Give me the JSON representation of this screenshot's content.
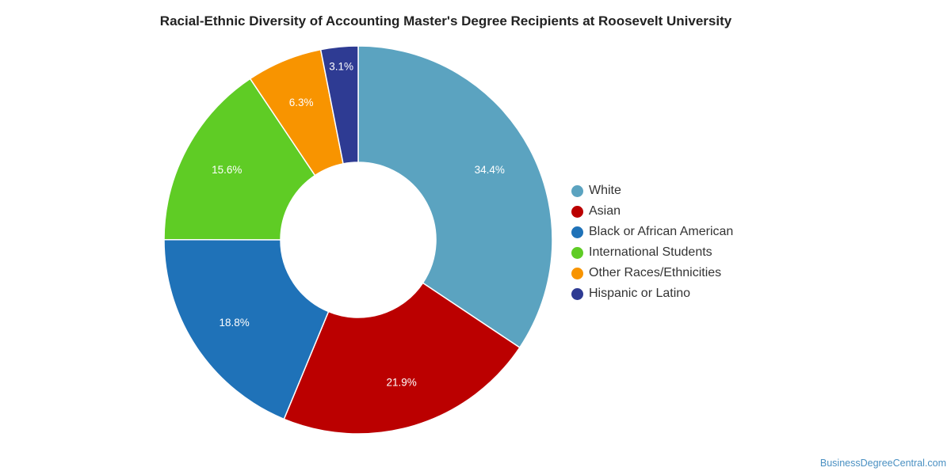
{
  "title": "Racial-Ethnic Diversity of Accounting Master's Degree Recipients at Roosevelt University",
  "source": "BusinessDegreeCentral.com",
  "chart_data": {
    "type": "pie",
    "variant": "donut",
    "title": "Racial-Ethnic Diversity of Accounting Master's Degree Recipients at Roosevelt University",
    "legend_position": "right",
    "slices": [
      {
        "label": "White",
        "value": 34.4,
        "display": "34.4%",
        "color": "#5ba3c0"
      },
      {
        "label": "Asian",
        "value": 21.9,
        "display": "21.9%",
        "color": "#bb0000"
      },
      {
        "label": "Black or African American",
        "value": 18.8,
        "display": "18.8%",
        "color": "#1f72b8"
      },
      {
        "label": "International Students",
        "value": 15.6,
        "display": "15.6%",
        "color": "#5fcc25"
      },
      {
        "label": "Other Races/Ethnicities",
        "value": 6.3,
        "display": "6.3%",
        "color": "#f89400"
      },
      {
        "label": "Hispanic or Latino",
        "value": 3.1,
        "display": "3.1%",
        "color": "#2e3b93"
      }
    ]
  }
}
